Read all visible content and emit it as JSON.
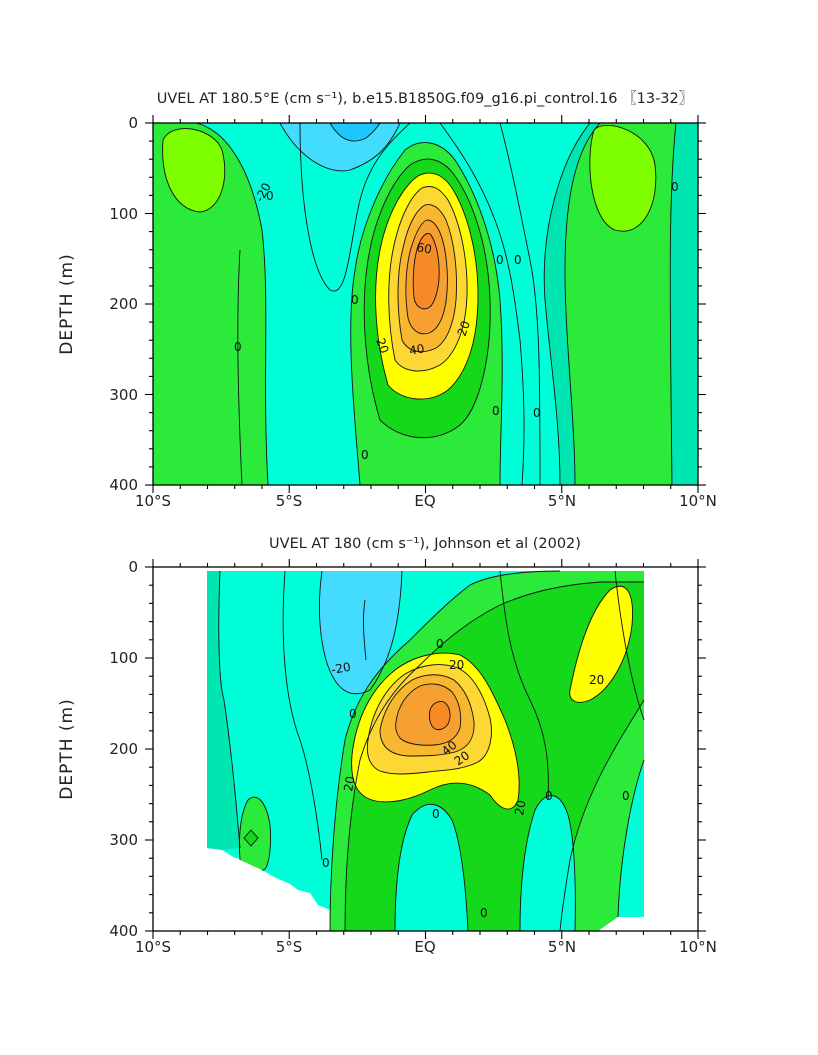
{
  "chart_data": [
    {
      "type": "contour",
      "title": "UVEL AT 180.5°E (cm s⁻¹), b.e15.B1850G.f09_g16.pi_control.16 〖13-32〗",
      "ylabel": "DEPTH (m)",
      "xlabel": "",
      "xlim": [
        -10,
        10
      ],
      "ylim": [
        400,
        0
      ],
      "x_ticks": [
        "10°S",
        "5°S",
        "EQ",
        "5°N",
        "10°N"
      ],
      "y_ticks": [
        "0",
        "100",
        "200",
        "300",
        "400"
      ],
      "contour_interval": 10,
      "contour_labels": [
        "-20",
        "0",
        "0",
        "0",
        "0",
        "0",
        "0",
        "0",
        "0",
        "0",
        "20",
        "20",
        "40",
        "60"
      ],
      "core_max_estimate": 70,
      "core_location": {
        "lat": 0,
        "depth": 170
      },
      "colors": {
        "neg30": "#1ec8ff",
        "neg20": "#43dcff",
        "neg10": "#00ffd8",
        "zero": "#00e6b0",
        "pos0": "#2bea3a",
        "pos10": "#16d81a",
        "pos20": "#ffff00",
        "pos30": "#fdd835",
        "pos40": "#f8b72e",
        "pos50": "#f6a032",
        "pos60": "#f58a26"
      }
    },
    {
      "type": "contour",
      "title": "UVEL AT 180 (cm s⁻¹), Johnson et al (2002)",
      "ylabel": "DEPTH (m)",
      "xlabel": "",
      "xlim": [
        -10,
        10
      ],
      "ylim": [
        400,
        0
      ],
      "x_ticks": [
        "10°S",
        "5°S",
        "EQ",
        "5°N",
        "10°N"
      ],
      "y_ticks": [
        "0",
        "100",
        "200",
        "300",
        "400"
      ],
      "data_extent_lat": [
        -8,
        8
      ],
      "contour_interval": 10,
      "contour_labels": [
        "-20",
        "0",
        "0",
        "0",
        "0",
        "0",
        "0",
        "0",
        "20",
        "20",
        "20",
        "20",
        "20",
        "40"
      ],
      "core_max_estimate": 70,
      "core_location": {
        "lat": 0.5,
        "depth": 170
      },
      "colors": {
        "neg20": "#43dcff",
        "neg10": "#00ffd8",
        "zero": "#00e6b0",
        "pos0": "#2bea3a",
        "pos10": "#16d81a",
        "pos20": "#ffff00",
        "pos30": "#fdd835",
        "pos40": "#f8b72e",
        "pos50": "#f6a032",
        "pos60": "#f58a26"
      }
    }
  ]
}
